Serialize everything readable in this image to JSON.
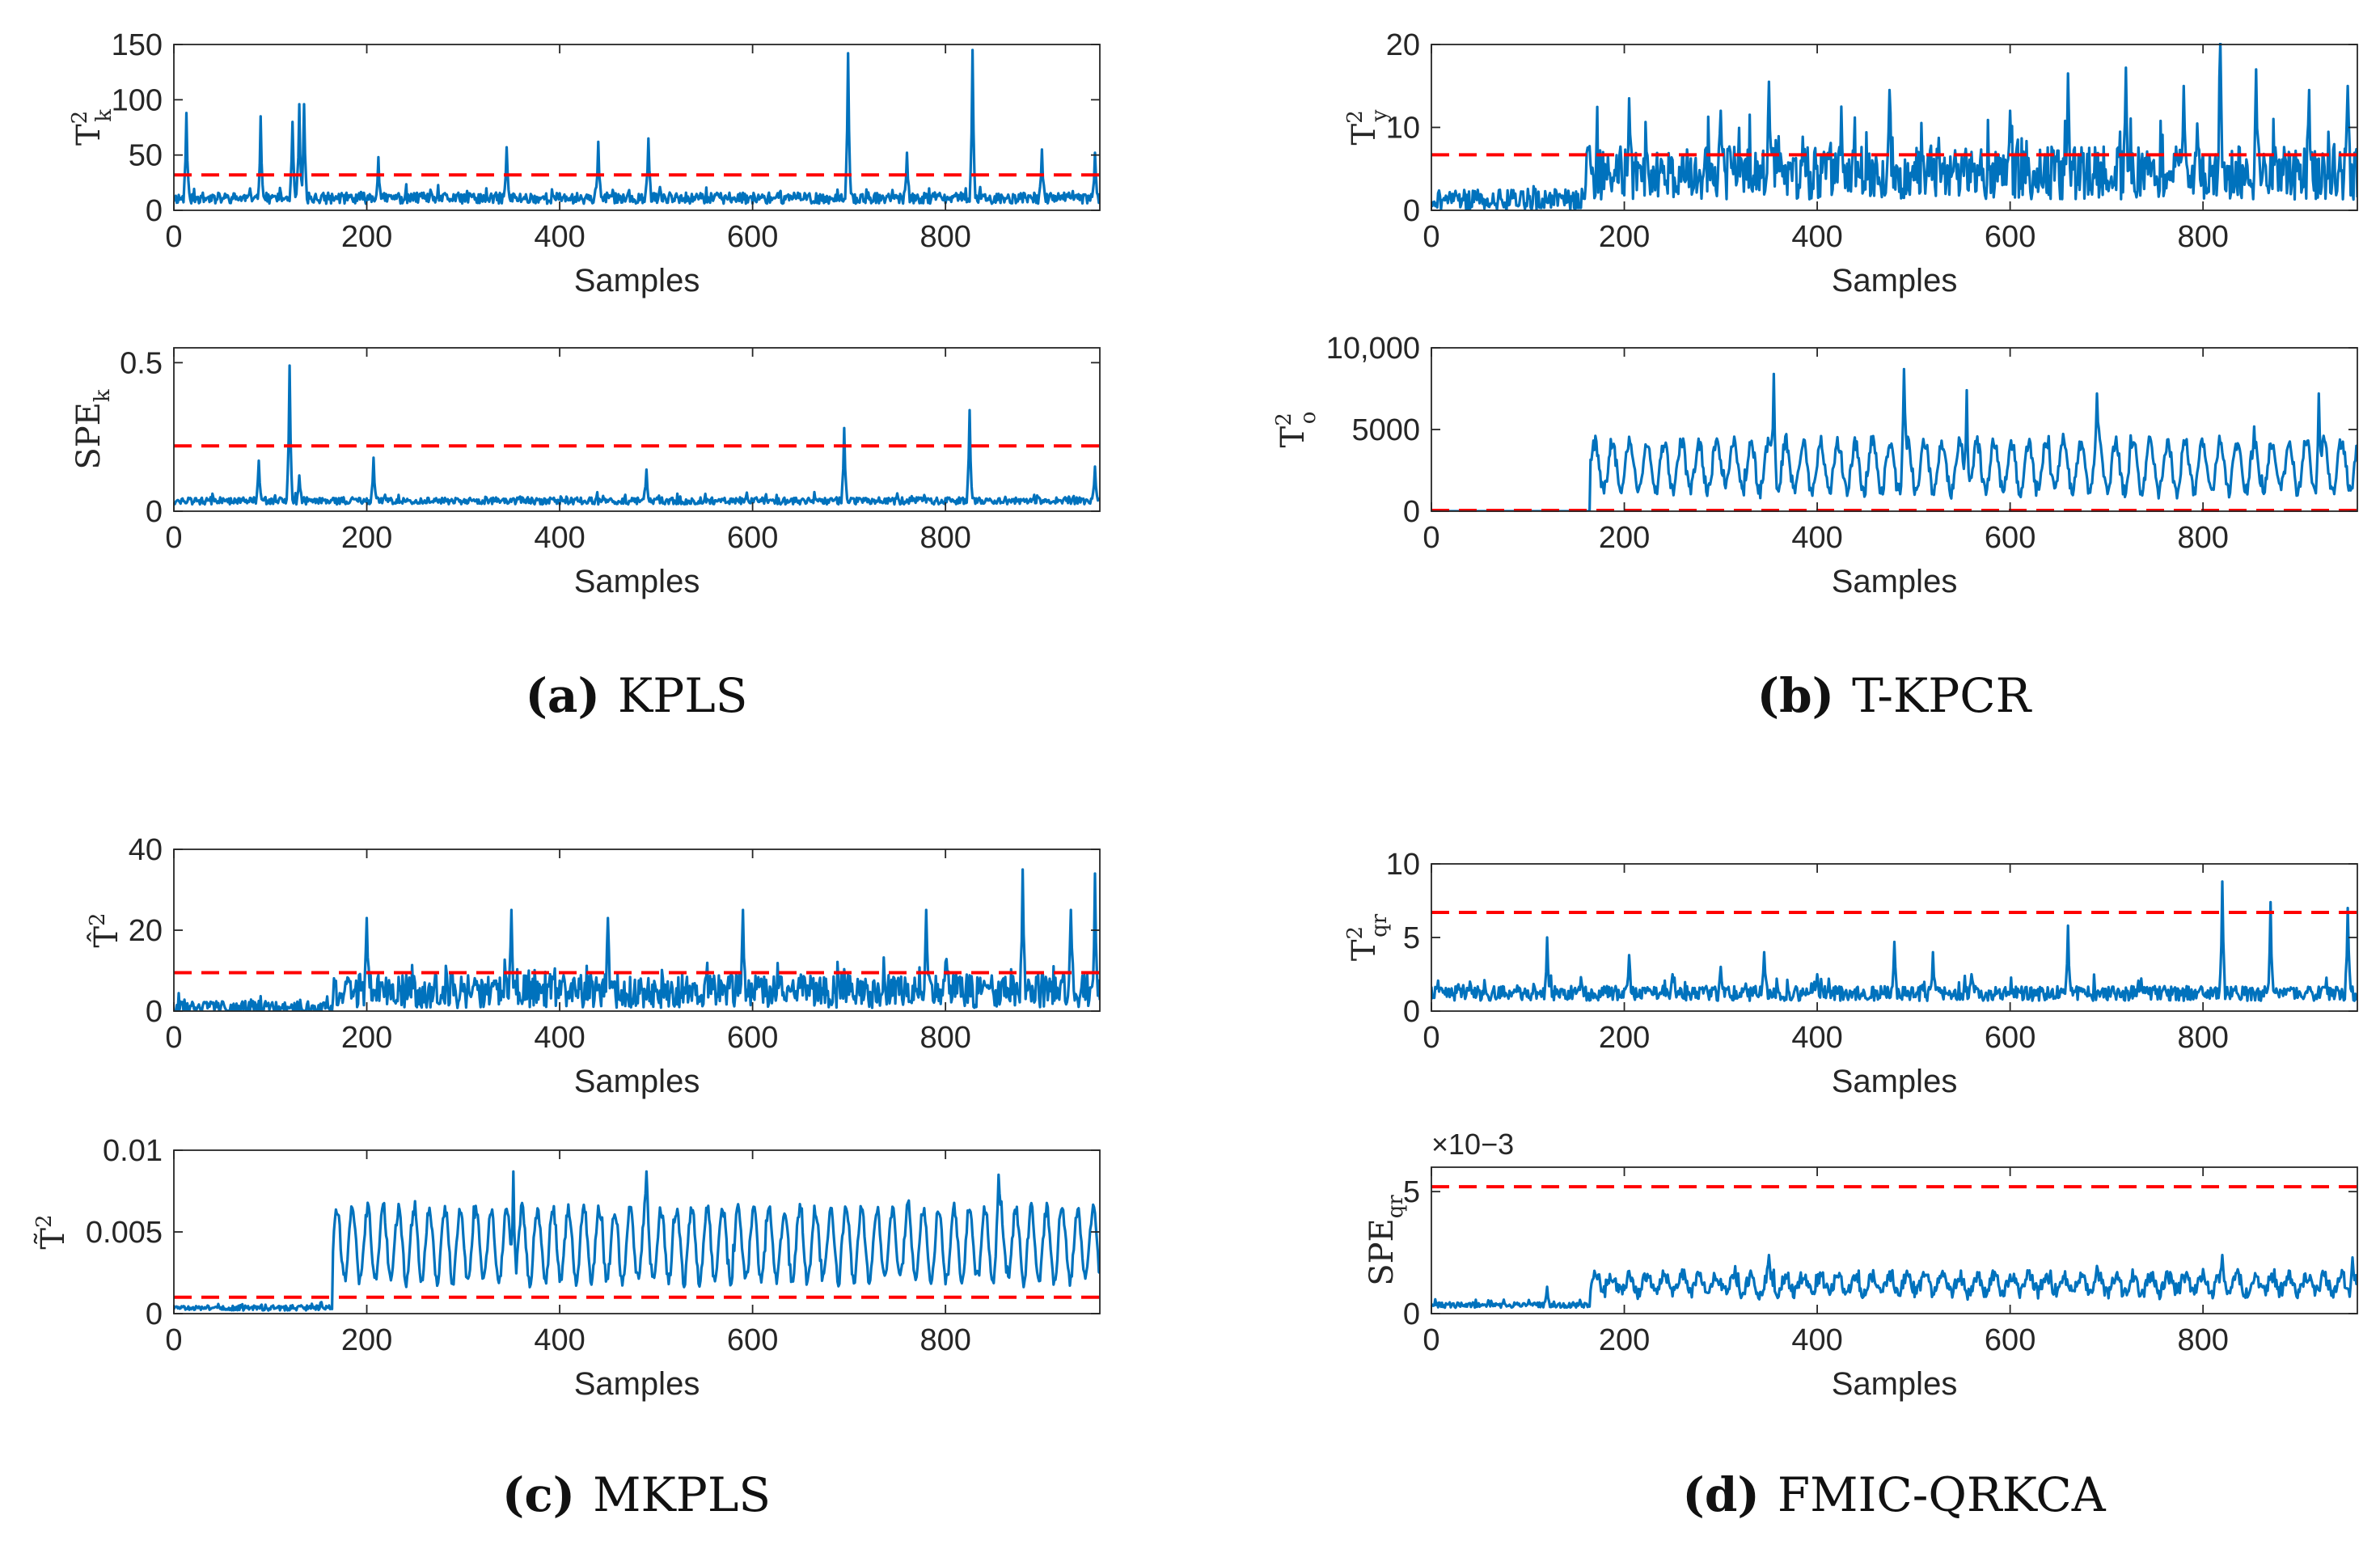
{
  "colors": {
    "series": "#0072BD",
    "threshold": "#FF0000",
    "axes": "#262626"
  },
  "captions": [
    {
      "letter": "(a)",
      "text": "KPLS"
    },
    {
      "letter": "(b)",
      "text": "T-KPCR"
    },
    {
      "letter": "(c)",
      "text": "MKPLS"
    },
    {
      "letter": "(d)",
      "text": "FMIC-QRKCA"
    }
  ],
  "chart_data": [
    {
      "id": "a1",
      "type": "line",
      "title": "",
      "xlabel": "Samples",
      "ylabel": {
        "base": "T",
        "sup": "2",
        "sub": "k"
      },
      "xlim": [
        0,
        960
      ],
      "ylim": [
        0,
        150
      ],
      "xticks": [
        0,
        200,
        400,
        600,
        800
      ],
      "xtick_labels": [
        "0",
        "200",
        "400",
        "600",
        "800"
      ],
      "yticks": [
        0,
        50,
        100,
        150
      ],
      "ytick_labels": [
        "0",
        "50",
        "100",
        "150"
      ],
      "threshold": 32,
      "series": [
        {
          "name": "statistic",
          "profile": {
            "fault_start": 0,
            "pre_mean": 11,
            "post_mean": 11,
            "noise": 5,
            "osc_amp": 0,
            "osc_period": 20,
            "seed": 11
          },
          "spikes": [
            [
              13,
              88
            ],
            [
              90,
              85
            ],
            [
              123,
              80
            ],
            [
              130,
              96
            ],
            [
              135,
              96
            ],
            [
              212,
              48
            ],
            [
              345,
              57
            ],
            [
              440,
              62
            ],
            [
              492,
              65
            ],
            [
              699,
              142
            ],
            [
              760,
              52
            ],
            [
              828,
              145
            ],
            [
              900,
              55
            ],
            [
              955,
              52
            ]
          ]
        }
      ]
    },
    {
      "id": "a2",
      "type": "line",
      "title": "",
      "xlabel": "Samples",
      "ylabel": {
        "base": "SPE",
        "sup": "",
        "sub": "k"
      },
      "xlim": [
        0,
        960
      ],
      "ylim": [
        0,
        0.55
      ],
      "xticks": [
        0,
        200,
        400,
        600,
        800
      ],
      "xtick_labels": [
        "0",
        "200",
        "400",
        "600",
        "800"
      ],
      "yticks": [
        0,
        0.5
      ],
      "ytick_labels": [
        "0",
        "0.5"
      ],
      "threshold": 0.22,
      "series": [
        {
          "name": "statistic",
          "profile": {
            "fault_start": 0,
            "pre_mean": 0.025,
            "post_mean": 0.035,
            "noise": 0.012,
            "osc_amp": 0,
            "osc_period": 20,
            "seed": 12
          },
          "spikes": [
            [
              88,
              0.17
            ],
            [
              120,
              0.49
            ],
            [
              130,
              0.12
            ],
            [
              207,
              0.18
            ],
            [
              490,
              0.14
            ],
            [
              695,
              0.28
            ],
            [
              750,
              0.06
            ],
            [
              825,
              0.34
            ],
            [
              955,
              0.15
            ]
          ]
        }
      ]
    },
    {
      "id": "b1",
      "type": "line",
      "title": "",
      "xlabel": "Samples",
      "ylabel": {
        "base": "T",
        "sup": "2",
        "sub": "y"
      },
      "xlim": [
        0,
        960
      ],
      "ylim": [
        0,
        20
      ],
      "xticks": [
        0,
        200,
        400,
        600,
        800
      ],
      "xtick_labels": [
        "0",
        "200",
        "400",
        "600",
        "800"
      ],
      "yticks": [
        0,
        10,
        20
      ],
      "ytick_labels": [
        "0",
        "10",
        "20"
      ],
      "threshold": 6.7,
      "series": [
        {
          "name": "statistic",
          "profile": {
            "fault_start": 160,
            "pre_mean": 1.3,
            "post_mean": 4.5,
            "noise": 3.2,
            "osc_amp": 0,
            "osc_period": 20,
            "seed": 21
          },
          "spikes": [
            [
              205,
              13.5
            ],
            [
              300,
              12
            ],
            [
              350,
              15.5
            ],
            [
              425,
              12.5
            ],
            [
              475,
              14.5
            ],
            [
              600,
              12
            ],
            [
              660,
              16.5
            ],
            [
              720,
              17.2
            ],
            [
              780,
              15
            ],
            [
              818,
              20.4
            ],
            [
              855,
              17
            ],
            [
              910,
              14.5
            ],
            [
              950,
              15
            ]
          ]
        }
      ]
    },
    {
      "id": "b2",
      "type": "line",
      "title": "",
      "xlabel": "Samples",
      "ylabel": {
        "base": "T",
        "sup": "2",
        "sub": "o"
      },
      "xlim": [
        0,
        960
      ],
      "ylim": [
        0,
        10000
      ],
      "xticks": [
        0,
        200,
        400,
        600,
        800
      ],
      "xtick_labels": [
        "0",
        "200",
        "400",
        "600",
        "800"
      ],
      "yticks": [
        0,
        5000,
        10000
      ],
      "ytick_labels": [
        "0",
        "5000",
        "10,000"
      ],
      "threshold": 50,
      "series": [
        {
          "name": "statistic",
          "profile": {
            "fault_start": 165,
            "pre_mean": 0,
            "post_mean": 2700,
            "noise": 450,
            "osc_amp": 1500,
            "osc_period": 18,
            "seed": 22
          },
          "spikes": [
            [
              355,
              8400
            ],
            [
              490,
              8700
            ],
            [
              555,
              7400
            ],
            [
              690,
              7200
            ],
            [
              920,
              7200
            ]
          ]
        }
      ]
    },
    {
      "id": "c1",
      "type": "line",
      "title": "",
      "xlabel": "Samples",
      "ylabel": {
        "base": "T̂",
        "sup": "2",
        "sub": ""
      },
      "xlim": [
        0,
        960
      ],
      "ylim": [
        0,
        40
      ],
      "xticks": [
        0,
        200,
        400,
        600,
        800
      ],
      "xtick_labels": [
        "0",
        "200",
        "400",
        "600",
        "800"
      ],
      "yticks": [
        0,
        20,
        40
      ],
      "ytick_labels": [
        "0",
        "20",
        "40"
      ],
      "threshold": 9.5,
      "series": [
        {
          "name": "statistic",
          "profile": {
            "fault_start": 165,
            "pre_mean": 0.8,
            "post_mean": 5,
            "noise": 4.2,
            "osc_amp": 0,
            "osc_period": 20,
            "seed": 31
          },
          "spikes": [
            [
              200,
              23
            ],
            [
              350,
              25
            ],
            [
              450,
              23
            ],
            [
              590,
              25
            ],
            [
              780,
              25
            ],
            [
              880,
              35
            ],
            [
              930,
              25
            ],
            [
              955,
              34
            ]
          ]
        }
      ]
    },
    {
      "id": "c2",
      "type": "line",
      "title": "",
      "xlabel": "Samples",
      "ylabel": {
        "base": "T̃",
        "sup": "2",
        "sub": ""
      },
      "xlim": [
        0,
        960
      ],
      "ylim": [
        0,
        0.01
      ],
      "xticks": [
        0,
        200,
        400,
        600,
        800
      ],
      "xtick_labels": [
        "0",
        "200",
        "400",
        "600",
        "800"
      ],
      "yticks": [
        0,
        0.005,
        0.01
      ],
      "ytick_labels": [
        "0",
        "0.005",
        "0.01"
      ],
      "threshold": 0.001,
      "series": [
        {
          "name": "statistic",
          "profile": {
            "fault_start": 165,
            "pre_mean": 0.00035,
            "post_mean": 0.0042,
            "noise": 0.0004,
            "osc_amp": 0.0022,
            "osc_period": 16,
            "seed": 32
          },
          "spikes": [
            [
              352,
              0.0087
            ],
            [
              490,
              0.0087
            ],
            [
              855,
              0.0085
            ]
          ]
        }
      ]
    },
    {
      "id": "d1",
      "type": "line",
      "title": "",
      "xlabel": "Samples",
      "ylabel": {
        "base": "T",
        "sup": "2",
        "sub": "qr"
      },
      "xlim": [
        0,
        960
      ],
      "ylim": [
        0,
        10
      ],
      "xticks": [
        0,
        200,
        400,
        600,
        800
      ],
      "xtick_labels": [
        "0",
        "200",
        "400",
        "600",
        "800"
      ],
      "yticks": [
        0,
        5,
        10
      ],
      "ytick_labels": [
        "0",
        "5",
        "10"
      ],
      "threshold": 6.7,
      "series": [
        {
          "name": "statistic",
          "profile": {
            "fault_start": 0,
            "pre_mean": 1.2,
            "post_mean": 1.2,
            "noise": 0.5,
            "osc_amp": 0,
            "osc_period": 20,
            "seed": 41
          },
          "spikes": [
            [
              40,
              2
            ],
            [
              120,
              5
            ],
            [
              155,
              2.3
            ],
            [
              205,
              3.8
            ],
            [
              250,
              2.5
            ],
            [
              300,
              3
            ],
            [
              345,
              4
            ],
            [
              400,
              2.5
            ],
            [
              480,
              4.7
            ],
            [
              520,
              4
            ],
            [
              560,
              2.5
            ],
            [
              660,
              5.8
            ],
            [
              820,
              8.8
            ],
            [
              870,
              7.4
            ],
            [
              950,
              7
            ]
          ]
        }
      ]
    },
    {
      "id": "d2",
      "type": "line",
      "title": "",
      "xlabel": "Samples",
      "ylabel": {
        "base": "SPE",
        "sup": "",
        "sub": "qr"
      },
      "xlim": [
        0,
        960
      ],
      "ylim": [
        0,
        6
      ],
      "xticks": [
        0,
        200,
        400,
        600,
        800
      ],
      "xtick_labels": [
        "0",
        "200",
        "400",
        "600",
        "800"
      ],
      "yticks": [
        0,
        5
      ],
      "ytick_labels": [
        "0",
        "5"
      ],
      "exponent_label": "×10−3",
      "threshold": 5.2,
      "series": [
        {
          "name": "statistic",
          "profile": {
            "fault_start": 165,
            "pre_mean": 0.35,
            "post_mean": 1.2,
            "noise": 0.28,
            "osc_amp": 0.35,
            "osc_period": 18,
            "seed": 42
          },
          "spikes": [
            [
              120,
              1.1
            ],
            [
              350,
              2.4
            ],
            [
              820,
              2.4
            ],
            [
              955,
              2.3
            ]
          ]
        }
      ]
    }
  ]
}
